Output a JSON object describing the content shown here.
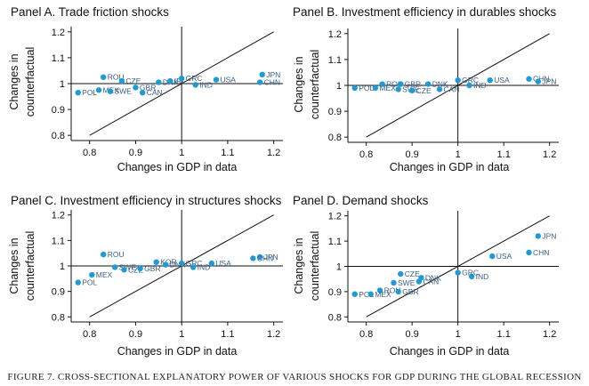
{
  "caption": "FIGURE 7. CROSS-SECTIONAL EXPLANATORY POWER OF VARIOUS SHOCKS FOR GDP DURING THE GLOBAL RECESSION",
  "colors": {
    "marker": "#1f9ad6",
    "label": "#3a5f86",
    "axis": "#111111"
  },
  "chart_data": [
    {
      "type": "scatter",
      "title": "Panel A. Trade friction shocks",
      "xlabel": "Changes in GDP in data",
      "ylabel": [
        "Changes in",
        "counterfactual"
      ],
      "xlim": [
        0.76,
        1.22
      ],
      "ylim": [
        0.78,
        1.22
      ],
      "xticks": [
        0.8,
        0.9,
        1,
        1.1,
        1.2
      ],
      "xticklabels": [
        "0.8",
        "0.9",
        "1",
        "1.1",
        "1.2"
      ],
      "yticks": [
        0.8,
        0.9,
        1,
        1.1,
        1.2
      ],
      "yticklabels": [
        "0.8",
        "0.9",
        "1",
        "1.1",
        "1.2"
      ],
      "points": [
        {
          "label": "ROU",
          "x": 0.83,
          "y": 1.025
        },
        {
          "label": "CZE",
          "x": 0.87,
          "y": 1.01
        },
        {
          "label": "POL",
          "x": 0.775,
          "y": 0.965
        },
        {
          "label": "MEX",
          "x": 0.82,
          "y": 0.975
        },
        {
          "label": "SWE",
          "x": 0.845,
          "y": 0.97
        },
        {
          "label": "GBR",
          "x": 0.9,
          "y": 0.985
        },
        {
          "label": "CAN",
          "x": 0.915,
          "y": 0.965
        },
        {
          "label": "DNK",
          "x": 0.95,
          "y": 1.005
        },
        {
          "label": "IRL",
          "x": 0.975,
          "y": 1.01
        },
        {
          "label": "GRC",
          "x": 1.0,
          "y": 1.02
        },
        {
          "label": "USA",
          "x": 1.075,
          "y": 1.015
        },
        {
          "label": "IND",
          "x": 1.03,
          "y": 0.995
        },
        {
          "label": "JPN",
          "x": 1.175,
          "y": 1.035
        },
        {
          "label": "CHN",
          "x": 1.17,
          "y": 1.005
        }
      ]
    },
    {
      "type": "scatter",
      "title": "Panel B. Investment efficiency in durables shocks",
      "xlabel": "Changes in GDP in data",
      "ylabel": [
        "Changes in",
        "counterfactual"
      ],
      "xlim": [
        0.76,
        1.22
      ],
      "ylim": [
        0.78,
        1.22
      ],
      "xticks": [
        0.8,
        0.9,
        1,
        1.1,
        1.2
      ],
      "xticklabels": [
        "0.8",
        "0.9",
        "1",
        "1.1",
        "1.2"
      ],
      "yticks": [
        0.8,
        0.9,
        1,
        1.1,
        1.2
      ],
      "yticklabels": [
        "0.8",
        "0.9",
        "1",
        "1.1",
        "1.2"
      ],
      "points": [
        {
          "label": "POL",
          "x": 0.775,
          "y": 0.99
        },
        {
          "label": "MEX",
          "x": 0.82,
          "y": 0.99
        },
        {
          "label": "ROU",
          "x": 0.835,
          "y": 1.005
        },
        {
          "label": "GBR",
          "x": 0.875,
          "y": 1.005
        },
        {
          "label": "SWE",
          "x": 0.87,
          "y": 0.985
        },
        {
          "label": "CZE",
          "x": 0.9,
          "y": 0.98
        },
        {
          "label": "DNK",
          "x": 0.935,
          "y": 1.005
        },
        {
          "label": "CAN",
          "x": 0.96,
          "y": 0.985
        },
        {
          "label": "GRC",
          "x": 1.0,
          "y": 1.02
        },
        {
          "label": "IND",
          "x": 1.025,
          "y": 1.0
        },
        {
          "label": "USA",
          "x": 1.07,
          "y": 1.02
        },
        {
          "label": "CHN",
          "x": 1.155,
          "y": 1.025
        },
        {
          "label": "JPN",
          "x": 1.175,
          "y": 1.015
        }
      ]
    },
    {
      "type": "scatter",
      "title": "Panel C. Investment efficiency in structures shocks",
      "xlabel": "Changes in GDP in data",
      "ylabel": [
        "Changes in",
        "counterfactual"
      ],
      "xlim": [
        0.76,
        1.22
      ],
      "ylim": [
        0.78,
        1.22
      ],
      "xticks": [
        0.8,
        0.9,
        1,
        1.1,
        1.2
      ],
      "xticklabels": [
        "0.8",
        "0.9",
        "1",
        "1.1",
        "1.2"
      ],
      "yticks": [
        0.8,
        0.9,
        1,
        1.1,
        1.2
      ],
      "yticklabels": [
        "0.8",
        "0.9",
        "1",
        "1.1",
        "1.2"
      ],
      "points": [
        {
          "label": "ROU",
          "x": 0.83,
          "y": 1.045
        },
        {
          "label": "POL",
          "x": 0.775,
          "y": 0.935
        },
        {
          "label": "MEX",
          "x": 0.805,
          "y": 0.965
        },
        {
          "label": "SWE",
          "x": 0.855,
          "y": 0.995
        },
        {
          "label": "CZE",
          "x": 0.875,
          "y": 0.985
        },
        {
          "label": "GBR",
          "x": 0.91,
          "y": 0.99
        },
        {
          "label": "KOR",
          "x": 0.945,
          "y": 1.015
        },
        {
          "label": "DNK",
          "x": 0.965,
          "y": 1.005
        },
        {
          "label": "GRC",
          "x": 1.0,
          "y": 1.01
        },
        {
          "label": "IND",
          "x": 1.025,
          "y": 0.995
        },
        {
          "label": "USA",
          "x": 1.065,
          "y": 1.01
        },
        {
          "label": "JPN",
          "x": 1.17,
          "y": 1.035
        },
        {
          "label": "CHN",
          "x": 1.155,
          "y": 1.03
        }
      ]
    },
    {
      "type": "scatter",
      "title": "Panel D. Demand shocks",
      "xlabel": "Changes in GDP in data",
      "ylabel": [
        "Changes in",
        "counterfactual"
      ],
      "xlim": [
        0.76,
        1.22
      ],
      "ylim": [
        0.78,
        1.22
      ],
      "xticks": [
        0.8,
        0.9,
        1,
        1.1,
        1.2
      ],
      "xticklabels": [
        "0.8",
        "0.9",
        "1",
        "1.1",
        "1.2"
      ],
      "yticks": [
        0.8,
        0.9,
        1,
        1.1,
        1.2
      ],
      "yticklabels": [
        "0.8",
        "0.9",
        "1",
        "1.1",
        "1.2"
      ],
      "points": [
        {
          "label": "JPN",
          "x": 1.175,
          "y": 1.12
        },
        {
          "label": "CHN",
          "x": 1.155,
          "y": 1.055
        },
        {
          "label": "USA",
          "x": 1.075,
          "y": 1.04
        },
        {
          "label": "IND",
          "x": 1.03,
          "y": 0.96
        },
        {
          "label": "GRC",
          "x": 1.0,
          "y": 0.975
        },
        {
          "label": "CZE",
          "x": 0.875,
          "y": 0.97
        },
        {
          "label": "DNK",
          "x": 0.92,
          "y": 0.955
        },
        {
          "label": "SWE",
          "x": 0.86,
          "y": 0.935
        },
        {
          "label": "CAN",
          "x": 0.915,
          "y": 0.94
        },
        {
          "label": "ROU",
          "x": 0.83,
          "y": 0.905
        },
        {
          "label": "GBR",
          "x": 0.87,
          "y": 0.9
        },
        {
          "label": "POL",
          "x": 0.775,
          "y": 0.89
        },
        {
          "label": "MEX",
          "x": 0.81,
          "y": 0.89
        }
      ]
    }
  ]
}
